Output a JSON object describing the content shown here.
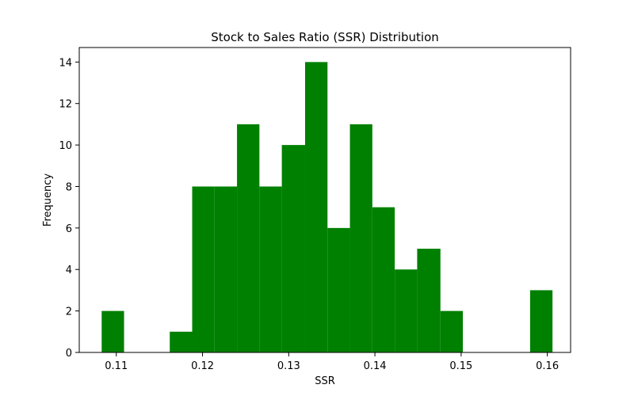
{
  "chart_data": {
    "type": "bar",
    "title": "Stock to Sales Ratio (SSR) Distribution",
    "xlabel": "SSR",
    "ylabel": "Frequency",
    "bar_color": "#008000",
    "grid": false,
    "legend": "none",
    "xlim": [
      0.1057,
      0.1627
    ],
    "ylim": [
      0,
      14.7
    ],
    "bins": [
      {
        "x_start": 0.1083,
        "x_end": 0.1109,
        "count": 2
      },
      {
        "x_start": 0.1109,
        "x_end": 0.1135,
        "count": 0
      },
      {
        "x_start": 0.1135,
        "x_end": 0.1162,
        "count": 0
      },
      {
        "x_start": 0.1162,
        "x_end": 0.1188,
        "count": 1
      },
      {
        "x_start": 0.1188,
        "x_end": 0.1214,
        "count": 8
      },
      {
        "x_start": 0.1214,
        "x_end": 0.124,
        "count": 8
      },
      {
        "x_start": 0.124,
        "x_end": 0.1266,
        "count": 11
      },
      {
        "x_start": 0.1266,
        "x_end": 0.1292,
        "count": 8
      },
      {
        "x_start": 0.1292,
        "x_end": 0.1319,
        "count": 10
      },
      {
        "x_start": 0.1319,
        "x_end": 0.1345,
        "count": 14
      },
      {
        "x_start": 0.1345,
        "x_end": 0.1371,
        "count": 6
      },
      {
        "x_start": 0.1371,
        "x_end": 0.1397,
        "count": 11
      },
      {
        "x_start": 0.1397,
        "x_end": 0.1423,
        "count": 7
      },
      {
        "x_start": 0.1423,
        "x_end": 0.1449,
        "count": 4
      },
      {
        "x_start": 0.1449,
        "x_end": 0.1476,
        "count": 5
      },
      {
        "x_start": 0.1476,
        "x_end": 0.1502,
        "count": 2
      },
      {
        "x_start": 0.1502,
        "x_end": 0.1528,
        "count": 0
      },
      {
        "x_start": 0.1528,
        "x_end": 0.1554,
        "count": 0
      },
      {
        "x_start": 0.1554,
        "x_end": 0.158,
        "count": 0
      },
      {
        "x_start": 0.158,
        "x_end": 0.1606,
        "count": 3
      }
    ],
    "x_ticks": [
      0.11,
      0.12,
      0.13,
      0.14,
      0.15,
      0.16
    ],
    "x_tick_labels": [
      "0.11",
      "0.12",
      "0.13",
      "0.14",
      "0.15",
      "0.16"
    ],
    "y_ticks": [
      0,
      2,
      4,
      6,
      8,
      10,
      12,
      14
    ],
    "y_tick_labels": [
      "0",
      "2",
      "4",
      "6",
      "8",
      "10",
      "12",
      "14"
    ]
  }
}
